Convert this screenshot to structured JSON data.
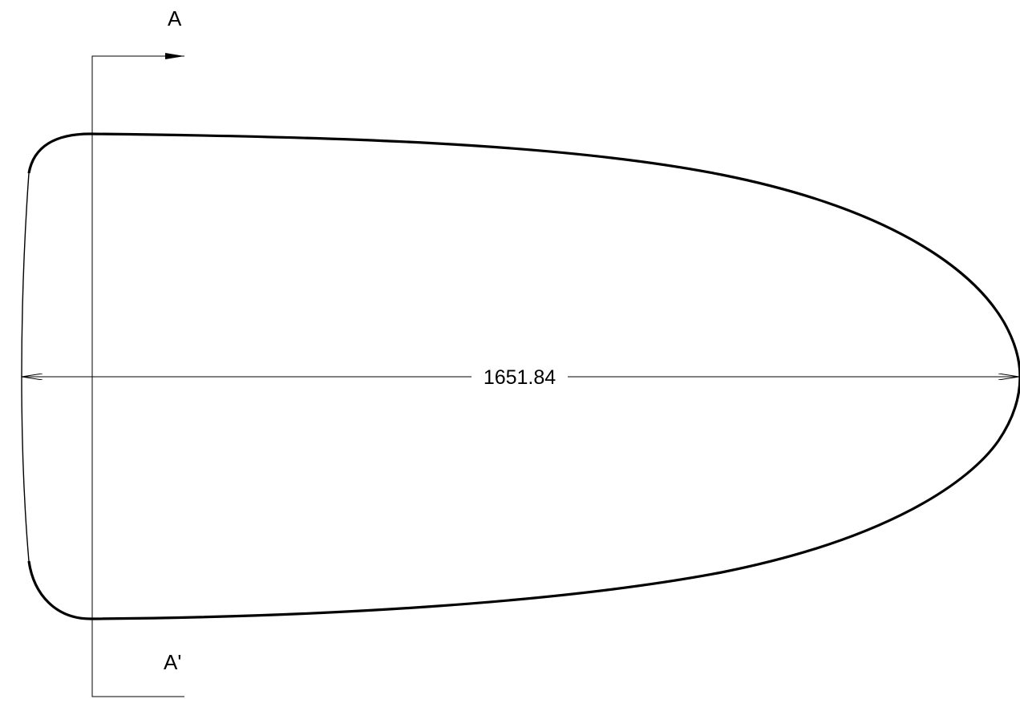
{
  "drawing": {
    "section": {
      "start_label": "A",
      "end_label": "A'"
    },
    "dimension": {
      "value": "1651.84"
    },
    "colors": {
      "line": "#000000",
      "background": "#ffffff"
    }
  }
}
